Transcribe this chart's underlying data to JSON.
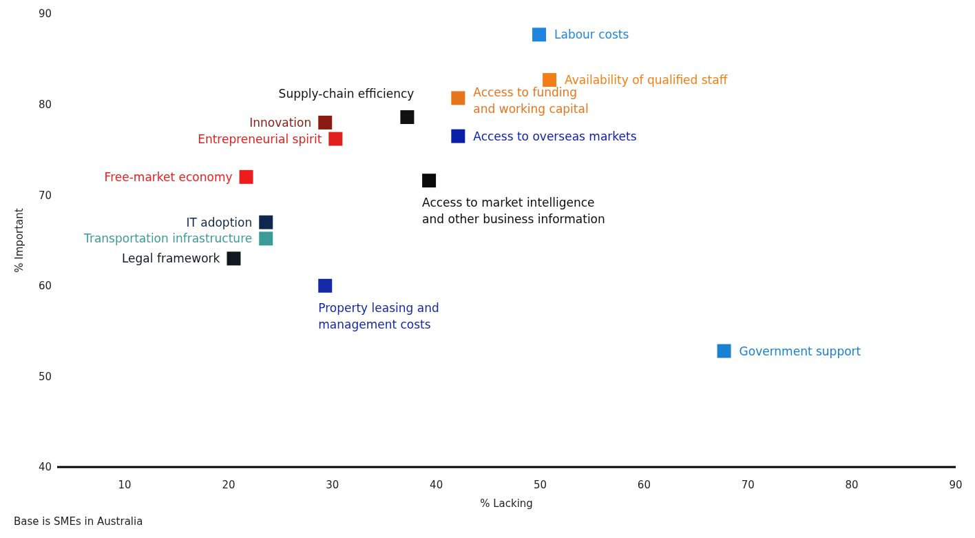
{
  "chart_data": {
    "type": "scatter",
    "xlabel": "% Lacking",
    "ylabel": "% Important",
    "marker": "square",
    "xlim": [
      3.5,
      90
    ],
    "xticks": [
      10,
      20,
      30,
      40,
      50,
      60,
      70,
      80,
      90
    ],
    "ylim": [
      40,
      90
    ],
    "yticks": [
      40,
      50,
      60,
      70,
      80,
      90
    ],
    "annotations": [
      "Base is SMEs in Australia"
    ],
    "series": [
      {
        "name": "Labour costs",
        "color": "#1f86e0",
        "x": [
          49.9
        ],
        "values": [
          87.7
        ]
      },
      {
        "name": "Availability of qualified staff",
        "color": "#f07f1a",
        "x": [
          50.9
        ],
        "values": [
          82.7
        ]
      },
      {
        "name": "Access to funding\nand working capital",
        "color": "#e6761c",
        "x": [
          42.1
        ],
        "values": [
          80.7
        ]
      },
      {
        "name": "Supply-chain efficiency",
        "color": "#111111",
        "x": [
          37.2
        ],
        "values": [
          78.6
        ]
      },
      {
        "name": "Innovation",
        "color": "#8b1a10",
        "x": [
          29.3
        ],
        "values": [
          78.0
        ]
      },
      {
        "name": "Entrepreneurial spirit",
        "color": "#e0201c",
        "x": [
          30.3
        ],
        "values": [
          76.2
        ]
      },
      {
        "name": "Access to overseas markets",
        "color": "#0a1fa8",
        "x": [
          42.1
        ],
        "values": [
          76.5
        ]
      },
      {
        "name": "Free-market economy",
        "color": "#ee1c1c",
        "x": [
          21.7
        ],
        "values": [
          72.0
        ]
      },
      {
        "name": "Access to market intelligence\nand other business information",
        "color": "#0a0a0a",
        "x": [
          39.3
        ],
        "values": [
          71.6
        ]
      },
      {
        "name": "IT adoption",
        "color": "#10284f",
        "x": [
          23.6
        ],
        "values": [
          67.0
        ]
      },
      {
        "name": "Transportation infrastructure",
        "color": "#3a9b98",
        "x": [
          23.6
        ],
        "values": [
          65.2
        ]
      },
      {
        "name": "Legal framework",
        "color": "#111822",
        "x": [
          20.5
        ],
        "values": [
          63.0
        ]
      },
      {
        "name": "Property leasing and\nmanagement costs",
        "color": "#1428a8",
        "x": [
          29.3
        ],
        "values": [
          60.0
        ]
      },
      {
        "name": "Government support",
        "color": "#1a80d0",
        "x": [
          67.7
        ],
        "values": [
          52.8
        ]
      }
    ]
  }
}
